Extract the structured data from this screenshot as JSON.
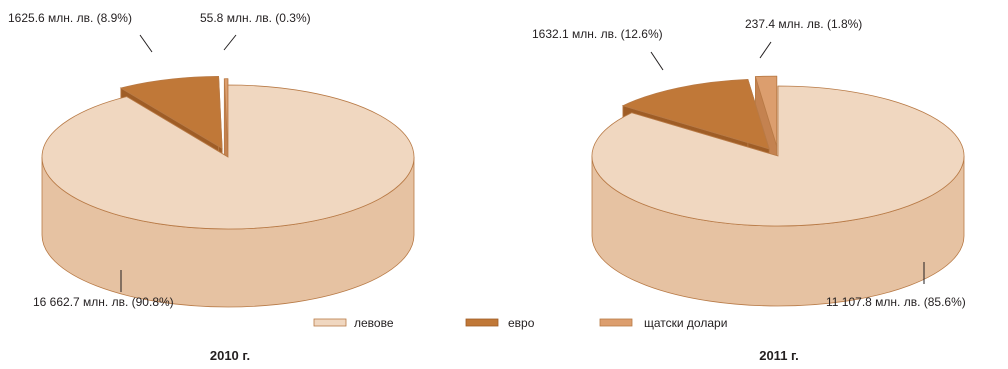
{
  "chart_data": [
    {
      "type": "pie",
      "title": "2010 г.",
      "categories": [
        "левове",
        "евро",
        "щатски долари"
      ],
      "values": [
        16662.7,
        1625.6,
        55.8
      ],
      "percent": [
        90.8,
        8.9,
        0.3
      ],
      "labels": [
        "16 662.7 млн. лв. (90.8%)",
        "1625.6 млн. лв. (8.9%)",
        "55.8 млн. лв. (0.3%)"
      ]
    },
    {
      "type": "pie",
      "title": "2011 г.",
      "categories": [
        "левове",
        "евро",
        "щатски долари"
      ],
      "values": [
        11107.8,
        1632.1,
        237.4
      ],
      "percent": [
        85.6,
        12.6,
        1.8
      ],
      "labels": [
        "11 107.8 млн. лв. (85.6%)",
        "1632.1 млн. лв. (12.6%)",
        "237.4 млн. лв. (1.8%)"
      ]
    }
  ],
  "legend": [
    {
      "label": "левове",
      "color": "#f0d7c0"
    },
    {
      "label": "евро",
      "color": "#c07838"
    },
    {
      "label": "щатски долари",
      "color": "#dc9e6e"
    }
  ],
  "colors": {
    "side_levove": "#e6c2a2",
    "side_evro": "#9f5d26",
    "side_usd": "#c48250",
    "edge": "#b87a46"
  }
}
